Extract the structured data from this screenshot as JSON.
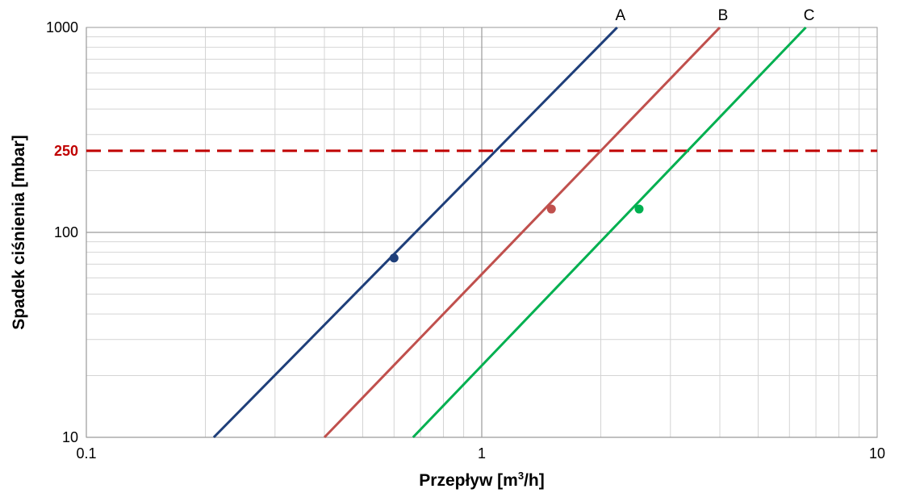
{
  "chart_data": {
    "type": "line",
    "xlabel": "Przepływ [m",
    "xlabel_sup": "3",
    "xlabel_end": "/h]",
    "ylabel": "Spadek ciśnienia [mbar]",
    "x_scale": "log",
    "y_scale": "log",
    "xlim": [
      0.1,
      10
    ],
    "ylim": [
      10,
      1000
    ],
    "x_ticks": [
      {
        "value": 0.1,
        "label": "0.1"
      },
      {
        "value": 1,
        "label": "1"
      },
      {
        "value": 10,
        "label": "10"
      }
    ],
    "y_ticks": [
      {
        "value": 10,
        "label": "10"
      },
      {
        "value": 100,
        "label": "100"
      },
      {
        "value": 1000,
        "label": "1000"
      }
    ],
    "grid": true,
    "reference_line": {
      "value": 250,
      "label": "250",
      "color": "#C00000",
      "style": "dashed"
    },
    "series": [
      {
        "name": "A",
        "color": "#1F3F7A",
        "x": [
          0.21,
          2.2
        ],
        "y": [
          10,
          1000
        ],
        "marker": {
          "x": 0.6,
          "y": 75
        }
      },
      {
        "name": "B",
        "color": "#C0504D",
        "x": [
          0.4,
          4.0
        ],
        "y": [
          10,
          1000
        ],
        "marker": {
          "x": 1.5,
          "y": 130
        }
      },
      {
        "name": "C",
        "color": "#00B050",
        "x": [
          0.67,
          6.6
        ],
        "y": [
          10,
          1000
        ],
        "marker": {
          "x": 2.5,
          "y": 130
        }
      }
    ]
  }
}
